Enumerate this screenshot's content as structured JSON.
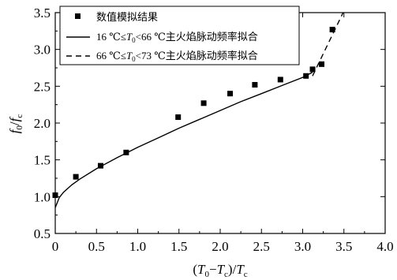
{
  "chart_data": {
    "type": "scatter",
    "xlim": [
      0,
      4.0
    ],
    "ylim": [
      0.5,
      3.5
    ],
    "x_ticks": [
      "0",
      "0.5",
      "1.0",
      "1.5",
      "2.0",
      "2.5",
      "3.0",
      "3.5",
      "4.0"
    ],
    "y_ticks": [
      "0.5",
      "1.0",
      "1.5",
      "2.0",
      "2.5",
      "3.0",
      "3.5"
    ],
    "xlabel": "(T0−Tc)/Tc",
    "ylabel": "f0/fc",
    "grid": false,
    "legend_position": "top-left",
    "series": [
      {
        "name": "数值模拟结果",
        "kind": "scatter",
        "marker": "square",
        "x": [
          0.0,
          0.25,
          0.55,
          0.86,
          1.49,
          1.8,
          2.12,
          2.42,
          2.73,
          3.04,
          3.12,
          3.23,
          3.36
        ],
        "y": [
          1.02,
          1.27,
          1.42,
          1.6,
          2.08,
          2.27,
          2.4,
          2.52,
          2.59,
          2.64,
          2.73,
          2.8,
          3.27
        ]
      },
      {
        "name": "16 ℃≤T0<66 ℃主火焰脉动频率拟合",
        "kind": "line",
        "style": "solid",
        "x": [
          0.0,
          0.05,
          0.1,
          0.2,
          0.3,
          0.5,
          0.75,
          1.0,
          1.25,
          1.5,
          1.75,
          2.0,
          2.25,
          2.5,
          2.75,
          3.0,
          3.12
        ],
        "y": [
          0.85,
          0.99,
          1.06,
          1.16,
          1.24,
          1.38,
          1.53,
          1.67,
          1.8,
          1.93,
          2.05,
          2.17,
          2.29,
          2.4,
          2.51,
          2.62,
          2.69
        ]
      },
      {
        "name": "66 ℃≤T0<73 ℃主火焰脉动频率拟合",
        "kind": "line",
        "style": "dashed",
        "x": [
          3.12,
          3.49
        ],
        "y": [
          2.64,
          3.5
        ]
      }
    ],
    "legend": {
      "entries": [
        {
          "label_main": "数值模拟结果"
        },
        {
          "prefix": "16 ℃≤",
          "var": "T",
          "sub": "0",
          "suffix": "<66 ℃主火焰脉动频率拟合"
        },
        {
          "prefix": "66 ℃≤",
          "var": "T",
          "sub": "0",
          "suffix": "<73 ℃主火焰脉动频率拟合"
        }
      ]
    },
    "axis_text": {
      "xlabel_parts": {
        "open": "(",
        "v1": "T",
        "s1": "0",
        "minus": "−",
        "v2": "T",
        "s2": "c",
        "close": ")/",
        "v3": "T",
        "s3": "c"
      },
      "ylabel_parts": {
        "v1": "f",
        "s1": "0",
        "slash": "/",
        "v2": "f",
        "s2": "c"
      }
    }
  }
}
